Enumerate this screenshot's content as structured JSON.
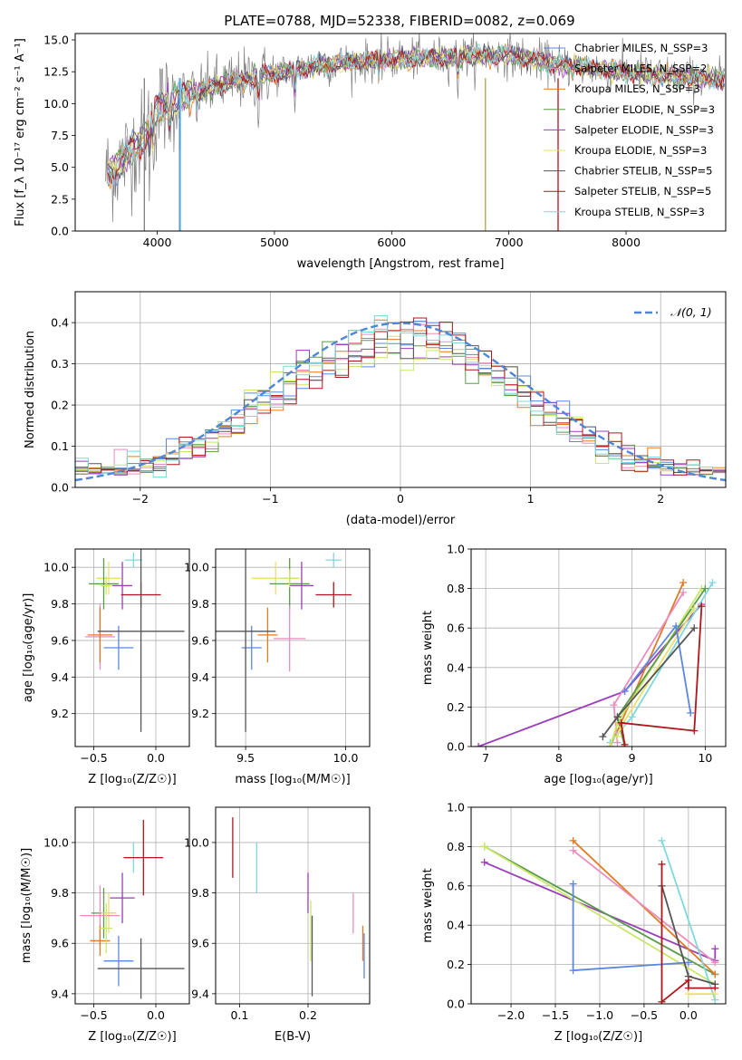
{
  "title": "PLATE=0788, MJD=52338, FIBERID=0082, z=0.069",
  "colors": {
    "cyan": "#7fd8dc",
    "orange": "#e07b22",
    "pink": "#e98dbf",
    "blue": "#5b87e0",
    "green": "#5a9a4a",
    "yellow": "#e8e06a",
    "purple": "#9a3fb8",
    "lime": "#c9e86a",
    "dark": "#555555",
    "red": "#b0161c",
    "gray": "#808080",
    "olive": "#a7a844"
  },
  "chart_data": [
    {
      "type": "line",
      "panel": "spectrum",
      "xlabel": "wavelength [Angstrom, rest frame]",
      "ylabel": "Flux [f_λ 10⁻¹⁷ erg cm⁻² s⁻¹ A⁻¹]",
      "xlim": [
        3300,
        8850
      ],
      "ylim": [
        0,
        15.5
      ],
      "xticks": [
        "4000",
        "5000",
        "6000",
        "7000",
        "8000"
      ],
      "yticks": [
        "0.0",
        "2.5",
        "5.0",
        "7.5",
        "10.0",
        "12.5",
        "15.0"
      ],
      "legend": [
        "Chabrier MILES, N_SSP=3",
        "Salpeter MILES, N_SSP=2",
        "Kroupa MILES, N_SSP=3",
        "Chabrier ELODIE, N_SSP=3",
        "Salpeter ELODIE, N_SSP=3",
        "Kroupa ELODIE, N_SSP=3",
        "Chabrier STELIB, N_SSP=5",
        "Salpeter STELIB, N_SSP=5",
        "Kroupa STELIB, N_SSP=3"
      ],
      "legend_colors": [
        "#5b87e0",
        "#e98dbf",
        "#e07b22",
        "#5a9a4a",
        "#9a3fb8",
        "#e8e06a",
        "#555555",
        "#b0161c",
        "#7fd8dc"
      ],
      "continuum": [
        [
          3580,
          4.5
        ],
        [
          3700,
          5.5
        ],
        [
          3800,
          6.6
        ],
        [
          3900,
          7.4
        ],
        [
          4000,
          9.6
        ],
        [
          4200,
          10.5
        ],
        [
          4400,
          11.1
        ],
        [
          4600,
          11.6
        ],
        [
          4800,
          12.0
        ],
        [
          5000,
          12.3
        ],
        [
          5300,
          12.9
        ],
        [
          5600,
          13.2
        ],
        [
          6000,
          13.5
        ],
        [
          6400,
          13.6
        ],
        [
          6800,
          13.8
        ],
        [
          7000,
          13.8
        ],
        [
          7400,
          13.1
        ],
        [
          7800,
          12.7
        ],
        [
          8300,
          12.2
        ],
        [
          8850,
          11.8
        ]
      ],
      "grid": false,
      "legend_position": "upper right"
    },
    {
      "type": "line",
      "panel": "residual histograms",
      "xlabel": "(data-model)/error",
      "ylabel": "Normed distribution",
      "xlim": [
        -2.5,
        2.5
      ],
      "ylim": [
        0,
        0.475
      ],
      "xticks": [
        "−2",
        "−1",
        "0",
        "1",
        "2"
      ],
      "yticks": [
        "0.0",
        "0.1",
        "0.2",
        "0.3",
        "0.4"
      ],
      "legend": [
        "𝒩(0, 1)"
      ],
      "reference": {
        "name": "𝒩(0, 1)",
        "mean": 0,
        "sigma": 1,
        "color": "#4f86d6"
      },
      "bin_width": 0.1,
      "grid": true,
      "legend_position": "upper right"
    },
    {
      "type": "scatter",
      "panel": "age vs Z",
      "xlabel": "Z [log₁₀(Z/Z☉)]",
      "ylabel": "age  [log₁₀(age/yr)]",
      "xlim": [
        -0.65,
        0.27
      ],
      "ylim": [
        9.02,
        10.1
      ],
      "xticks": [
        "−0.5",
        "0.0"
      ],
      "yticks": [
        "9.2",
        "9.4",
        "9.6",
        "9.8",
        "10.0"
      ],
      "points": [
        {
          "color": "#7fd8dc",
          "x": -0.18,
          "y": 10.04,
          "xerr": 0.07,
          "yerr": 0.04
        },
        {
          "color": "#e8e06a",
          "x": -0.38,
          "y": 9.94,
          "xerr": 0.1,
          "yerr": 0.09
        },
        {
          "color": "#5a9a4a",
          "x": -0.42,
          "y": 9.91,
          "xerr": 0.12,
          "yerr": 0.14
        },
        {
          "color": "#9a3fb8",
          "x": -0.27,
          "y": 9.9,
          "xerr": 0.08,
          "yerr": 0.13
        },
        {
          "color": "#e98dbf",
          "x": -0.45,
          "y": 9.62,
          "xerr": 0.12,
          "yerr": 0.18
        },
        {
          "color": "#e07b22",
          "x": -0.45,
          "y": 9.63,
          "xerr": 0.1,
          "yerr": 0.15
        },
        {
          "color": "#5b87e0",
          "x": -0.3,
          "y": 9.56,
          "xerr": 0.12,
          "yerr": 0.12
        },
        {
          "color": "#b0161c",
          "x": -0.12,
          "y": 9.85,
          "xerr": 0.16,
          "yerr": 0.07
        },
        {
          "color": "#555555",
          "x": -0.12,
          "y": 9.65,
          "xerr": 0.35,
          "yerr": 0.55
        },
        {
          "color": "#c9e86a",
          "x": -0.4,
          "y": 9.9,
          "xerr": 0.05,
          "yerr": 0.05
        }
      ],
      "grid": true
    },
    {
      "type": "scatter",
      "panel": "age vs mass",
      "xlabel": "mass [log₁₀(M/M☉)]",
      "ylabel": "",
      "xlim": [
        9.35,
        10.12
      ],
      "ylim": [
        9.02,
        10.1
      ],
      "xticks": [
        "9.5",
        "10.0"
      ],
      "yticks": [
        "9.2",
        "9.4",
        "9.6",
        "9.8",
        "10.0"
      ],
      "points": [
        {
          "color": "#7fd8dc",
          "x": 9.94,
          "y": 10.04,
          "xerr": 0.04,
          "yerr": 0.04
        },
        {
          "color": "#e8e06a",
          "x": 9.65,
          "y": 9.94,
          "xerr": 0.12,
          "yerr": 0.09
        },
        {
          "color": "#5a9a4a",
          "x": 9.72,
          "y": 9.91,
          "xerr": 0.1,
          "yerr": 0.14
        },
        {
          "color": "#9a3fb8",
          "x": 9.78,
          "y": 9.9,
          "xerr": 0.06,
          "yerr": 0.13
        },
        {
          "color": "#e98dbf",
          "x": 9.72,
          "y": 9.61,
          "xerr": 0.08,
          "yerr": 0.18
        },
        {
          "color": "#e07b22",
          "x": 9.61,
          "y": 9.63,
          "xerr": 0.05,
          "yerr": 0.15
        },
        {
          "color": "#5b87e0",
          "x": 9.53,
          "y": 9.56,
          "xerr": 0.05,
          "yerr": 0.12
        },
        {
          "color": "#b0161c",
          "x": 9.94,
          "y": 9.85,
          "xerr": 0.09,
          "yerr": 0.07
        },
        {
          "color": "#555555",
          "x": 9.5,
          "y": 9.65,
          "xerr": 0.15,
          "yerr": 0.55
        },
        {
          "color": "#c9e86a",
          "x": 9.72,
          "y": 9.94,
          "xerr": 0.04,
          "yerr": 0.05
        }
      ],
      "grid": true
    },
    {
      "type": "line",
      "panel": "mass weight vs age",
      "xlabel": "age  [log₁₀(age/yr)]",
      "ylabel": "mass weight",
      "xlim": [
        6.8,
        10.28
      ],
      "ylim": [
        0,
        1
      ],
      "xticks": [
        "7",
        "8",
        "9",
        "10"
      ],
      "yticks": [
        "0.0",
        "0.2",
        "0.4",
        "0.6",
        "0.8",
        "1.0"
      ],
      "series": [
        {
          "color": "#9a3fb8",
          "points": [
            [
              6.9,
              0.0
            ],
            [
              8.9,
              0.28
            ],
            [
              9.95,
              0.72
            ]
          ]
        },
        {
          "color": "#e07b22",
          "points": [
            [
              8.7,
              0.0
            ],
            [
              8.85,
              0.12
            ],
            [
              9.7,
              0.83
            ]
          ]
        },
        {
          "color": "#e98dbf",
          "points": [
            [
              8.8,
              0.02
            ],
            [
              8.75,
              0.21
            ],
            [
              9.7,
              0.78
            ]
          ]
        },
        {
          "color": "#7fd8dc",
          "points": [
            [
              8.7,
              0.02
            ],
            [
              9.0,
              0.15
            ],
            [
              10.1,
              0.83
            ]
          ]
        },
        {
          "color": "#c9e86a",
          "points": [
            [
              8.7,
              0.0
            ],
            [
              8.8,
              0.12
            ],
            [
              9.95,
              0.8
            ]
          ]
        },
        {
          "color": "#5a9a4a",
          "points": [
            [
              8.9,
              0.0
            ],
            [
              8.8,
              0.15
            ],
            [
              10.0,
              0.8
            ]
          ]
        },
        {
          "color": "#e8e06a",
          "points": [
            [
              8.8,
              0.05
            ],
            [
              8.85,
              0.1
            ],
            [
              9.85,
              0.7
            ]
          ]
        },
        {
          "color": "#5b87e0",
          "points": [
            [
              8.9,
              0.28
            ],
            [
              9.6,
              0.61
            ],
            [
              9.8,
              0.17
            ]
          ]
        },
        {
          "color": "#555555",
          "points": [
            [
              8.6,
              0.05
            ],
            [
              8.8,
              0.15
            ],
            [
              9.85,
              0.6
            ]
          ]
        },
        {
          "color": "#b0161c",
          "points": [
            [
              8.9,
              0.01
            ],
            [
              8.85,
              0.12
            ],
            [
              9.85,
              0.08
            ],
            [
              9.95,
              0.71
            ]
          ]
        }
      ],
      "grid": true
    },
    {
      "type": "scatter",
      "panel": "mass vs Z",
      "xlabel": "Z [log₁₀(Z/Z☉)]",
      "ylabel": "mass [log₁₀(M/M☉)]",
      "xlim": [
        -0.65,
        0.27
      ],
      "ylim": [
        9.36,
        10.14
      ],
      "xticks": [
        "−0.5",
        "0.0"
      ],
      "yticks": [
        "9.4",
        "9.6",
        "9.8",
        "10.0"
      ],
      "points": [
        {
          "color": "#7fd8dc",
          "x": -0.18,
          "y": 9.94,
          "xerr": 0.06,
          "yerr": 0.06
        },
        {
          "color": "#b0161c",
          "x": -0.1,
          "y": 9.94,
          "xerr": 0.16,
          "yerr": 0.15
        },
        {
          "color": "#9a3fb8",
          "x": -0.27,
          "y": 9.78,
          "xerr": 0.1,
          "yerr": 0.1
        },
        {
          "color": "#5a9a4a",
          "x": -0.42,
          "y": 9.72,
          "xerr": 0.1,
          "yerr": 0.1
        },
        {
          "color": "#e8e06a",
          "x": -0.38,
          "y": 9.72,
          "xerr": 0.06,
          "yerr": 0.08
        },
        {
          "color": "#e98dbf",
          "x": -0.45,
          "y": 9.71,
          "xerr": 0.16,
          "yerr": 0.12
        },
        {
          "color": "#e07b22",
          "x": -0.45,
          "y": 9.61,
          "xerr": 0.08,
          "yerr": 0.06
        },
        {
          "color": "#5b87e0",
          "x": -0.3,
          "y": 9.53,
          "xerr": 0.12,
          "yerr": 0.1
        },
        {
          "color": "#555555",
          "x": -0.12,
          "y": 9.5,
          "xerr": 0.35,
          "yerr": 0.12
        },
        {
          "color": "#c9e86a",
          "x": -0.4,
          "y": 9.66,
          "xerr": 0.05,
          "yerr": 0.1
        }
      ],
      "grid": true
    },
    {
      "type": "scatter",
      "panel": "mass vs E(B-V)",
      "xlabel": "E(B-V)",
      "ylabel": "",
      "xlim": [
        0.065,
        0.29
      ],
      "ylim": [
        9.36,
        10.14
      ],
      "xticks": [
        "0.1",
        "0.2"
      ],
      "yticks": [
        "9.4",
        "9.6",
        "9.8",
        "10.0"
      ],
      "points": [
        {
          "color": "#b0161c",
          "x": 0.09,
          "y": 9.98,
          "xerr": 0,
          "yerr": 0.12
        },
        {
          "color": "#7fd8dc",
          "x": 0.125,
          "y": 9.9,
          "xerr": 0,
          "yerr": 0.1
        },
        {
          "color": "#9a3fb8",
          "x": 0.2,
          "y": 9.8,
          "xerr": 0,
          "yerr": 0.08
        },
        {
          "color": "#c9e86a",
          "x": 0.204,
          "y": 9.65,
          "xerr": 0,
          "yerr": 0.12
        },
        {
          "color": "#555555",
          "x": 0.206,
          "y": 9.55,
          "xerr": 0,
          "yerr": 0.16
        },
        {
          "color": "#e98dbf",
          "x": 0.266,
          "y": 9.72,
          "xerr": 0,
          "yerr": 0.08
        },
        {
          "color": "#e07b22",
          "x": 0.28,
          "y": 9.6,
          "xerr": 0,
          "yerr": 0.07
        },
        {
          "color": "#5b87e0",
          "x": 0.282,
          "y": 9.55,
          "xerr": 0,
          "yerr": 0.09
        }
      ],
      "grid": true
    },
    {
      "type": "line",
      "panel": "mass weight vs Z",
      "xlabel": "Z [log₁₀(Z/Z☉)]",
      "ylabel": "mass weight",
      "xlim": [
        -2.45,
        0.42
      ],
      "ylim": [
        0,
        1
      ],
      "xticks": [
        "−2.0",
        "−1.5",
        "−1.0",
        "−0.5",
        "0.0"
      ],
      "yticks": [
        "0.0",
        "0.2",
        "0.4",
        "0.6",
        "0.8",
        "1.0"
      ],
      "series": [
        {
          "color": "#9a3fb8",
          "points": [
            [
              -2.3,
              0.72
            ],
            [
              0.3,
              0.22
            ],
            [
              0.3,
              0.28
            ]
          ]
        },
        {
          "color": "#5a9a4a",
          "points": [
            [
              -2.3,
              0.8
            ],
            [
              0.3,
              0.15
            ]
          ]
        },
        {
          "color": "#c9e86a",
          "points": [
            [
              -2.3,
              0.8
            ],
            [
              0.3,
              0.1
            ]
          ]
        },
        {
          "color": "#e07b22",
          "points": [
            [
              -1.3,
              0.83
            ],
            [
              0.3,
              0.15
            ]
          ]
        },
        {
          "color": "#e98dbf",
          "points": [
            [
              -1.3,
              0.78
            ],
            [
              0.3,
              0.21
            ]
          ]
        },
        {
          "color": "#5b87e0",
          "points": [
            [
              -1.3,
              0.61
            ],
            [
              -1.3,
              0.17
            ],
            [
              0.0,
              0.21
            ]
          ]
        },
        {
          "color": "#7fd8dc",
          "points": [
            [
              -0.3,
              0.83
            ],
            [
              0.3,
              0.02
            ]
          ]
        },
        {
          "color": "#555555",
          "points": [
            [
              -0.3,
              0.6
            ],
            [
              0.0,
              0.14
            ],
            [
              0.3,
              0.1
            ]
          ]
        },
        {
          "color": "#b0161c",
          "points": [
            [
              -0.3,
              0.71
            ],
            [
              -0.3,
              0.01
            ],
            [
              0.0,
              0.12
            ],
            [
              0.0,
              0.08
            ],
            [
              0.3,
              0.08
            ]
          ]
        },
        {
          "color": "#e8e06a",
          "points": [
            [
              0.0,
              0.05
            ],
            [
              0.3,
              0.05
            ]
          ]
        }
      ],
      "grid": true
    }
  ]
}
